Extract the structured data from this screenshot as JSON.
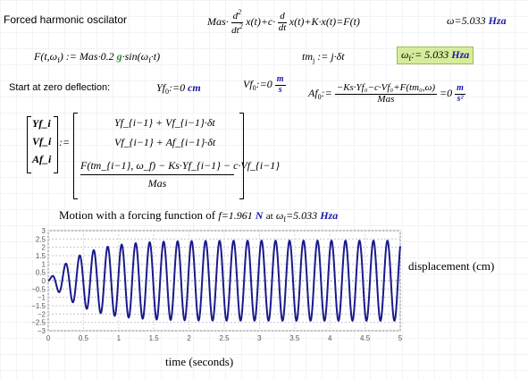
{
  "header": {
    "title": "Forced harmonic oscilator",
    "diffeq": {
      "mas": "Mas",
      "d2": "d",
      "d2sup": "2",
      "dt2": "dt",
      "dt2sup": "2",
      "x_of_t": "x(t)",
      "plus_c": "+c·",
      "d1": "d",
      "dt1": "dt",
      "rest": "x(t)+K·x(t)=F(t)"
    },
    "omega_def": "ω=5.033",
    "omega_unit": "Hza"
  },
  "force_def": {
    "lhs": "F(t,ω",
    "lhs_sub": "f",
    "lhs_end": ") :=",
    "rhs_a": "Mas·0.2",
    "g": "g",
    "rhs_b": "·sin(ω",
    "rhs_sub": "f",
    "rhs_end": "·t)"
  },
  "tm_def": {
    "lhs": "tm",
    "sub": "j",
    "rhs": ":= j·δt"
  },
  "omega_f_box": {
    "lhs": "ω",
    "sub": "f",
    "rhs": ":= 5.033",
    "unit": "Hza"
  },
  "initial": {
    "label": "Start at zero deflection:",
    "yf0": "Yf",
    "yf0_sub": "0",
    "yf0_rhs": ":=0",
    "yf0_unit": "cm",
    "vf0": "Vf",
    "vf0_sub": "0",
    "vf0_rhs": ":=0",
    "vf0_unit_num": "m",
    "vf0_unit_den": "s",
    "af0": "Af",
    "af0_sub": "0",
    "af0_rhs": ":=",
    "af0_num": "−Ks·Yf₀−c·Vf₀+F(tm₀,ω)",
    "af0_den": "Mas",
    "af0_result": "=0",
    "af0_unit_num": "m",
    "af0_unit_den": "s²"
  },
  "recursion": {
    "lhs": [
      "Yf_i",
      "Vf_i",
      "Af_i"
    ],
    "assign": ":=",
    "row1": "Yf_{i−1} + Vf_{i−1}·δt",
    "row2": "Vf_{i−1} + Af_{i−1}·δt",
    "row3_num": "F(tm_{i−1}, ω_f) − Ks·Yf_{i−1} − c·Vf_{i−1}",
    "row3_den": "Mas"
  },
  "plot": {
    "title_prefix": "Motion with a forcing function of",
    "f_text": "f=1.961",
    "f_unit": "N",
    "at": "at",
    "omega_text": "ω",
    "omega_sub": "f",
    "omega_value": "=5.033",
    "omega_unit": "Hza",
    "y_axis_label": "displacement (cm)",
    "x_axis_label": "time (seconds)"
  },
  "chart_data": {
    "type": "line",
    "title": "Motion with a forcing function of f=1.961 N at ω_f=5.033 Hza",
    "xlabel": "time (seconds)",
    "ylabel": "displacement (cm)",
    "xlim": [
      0,
      5
    ],
    "ylim": [
      -3,
      3
    ],
    "x_ticks": [
      "0",
      "0.5",
      "1",
      "1.5",
      "2",
      "2.5",
      "3",
      "3.5",
      "4",
      "4.5",
      "5"
    ],
    "y_ticks": [
      "3",
      "2.5",
      "2",
      "1.5",
      "1",
      "0.5",
      "0",
      "−0.5",
      "−1",
      "−1.5",
      "−2",
      "−2.5",
      "−3"
    ],
    "grid": true,
    "series": [
      {
        "color": "#1a1a8c",
        "model": "amplitude saturating",
        "omega_hz": 5.033,
        "amplitude_max": 2.4,
        "tau": 0.45
      }
    ]
  }
}
